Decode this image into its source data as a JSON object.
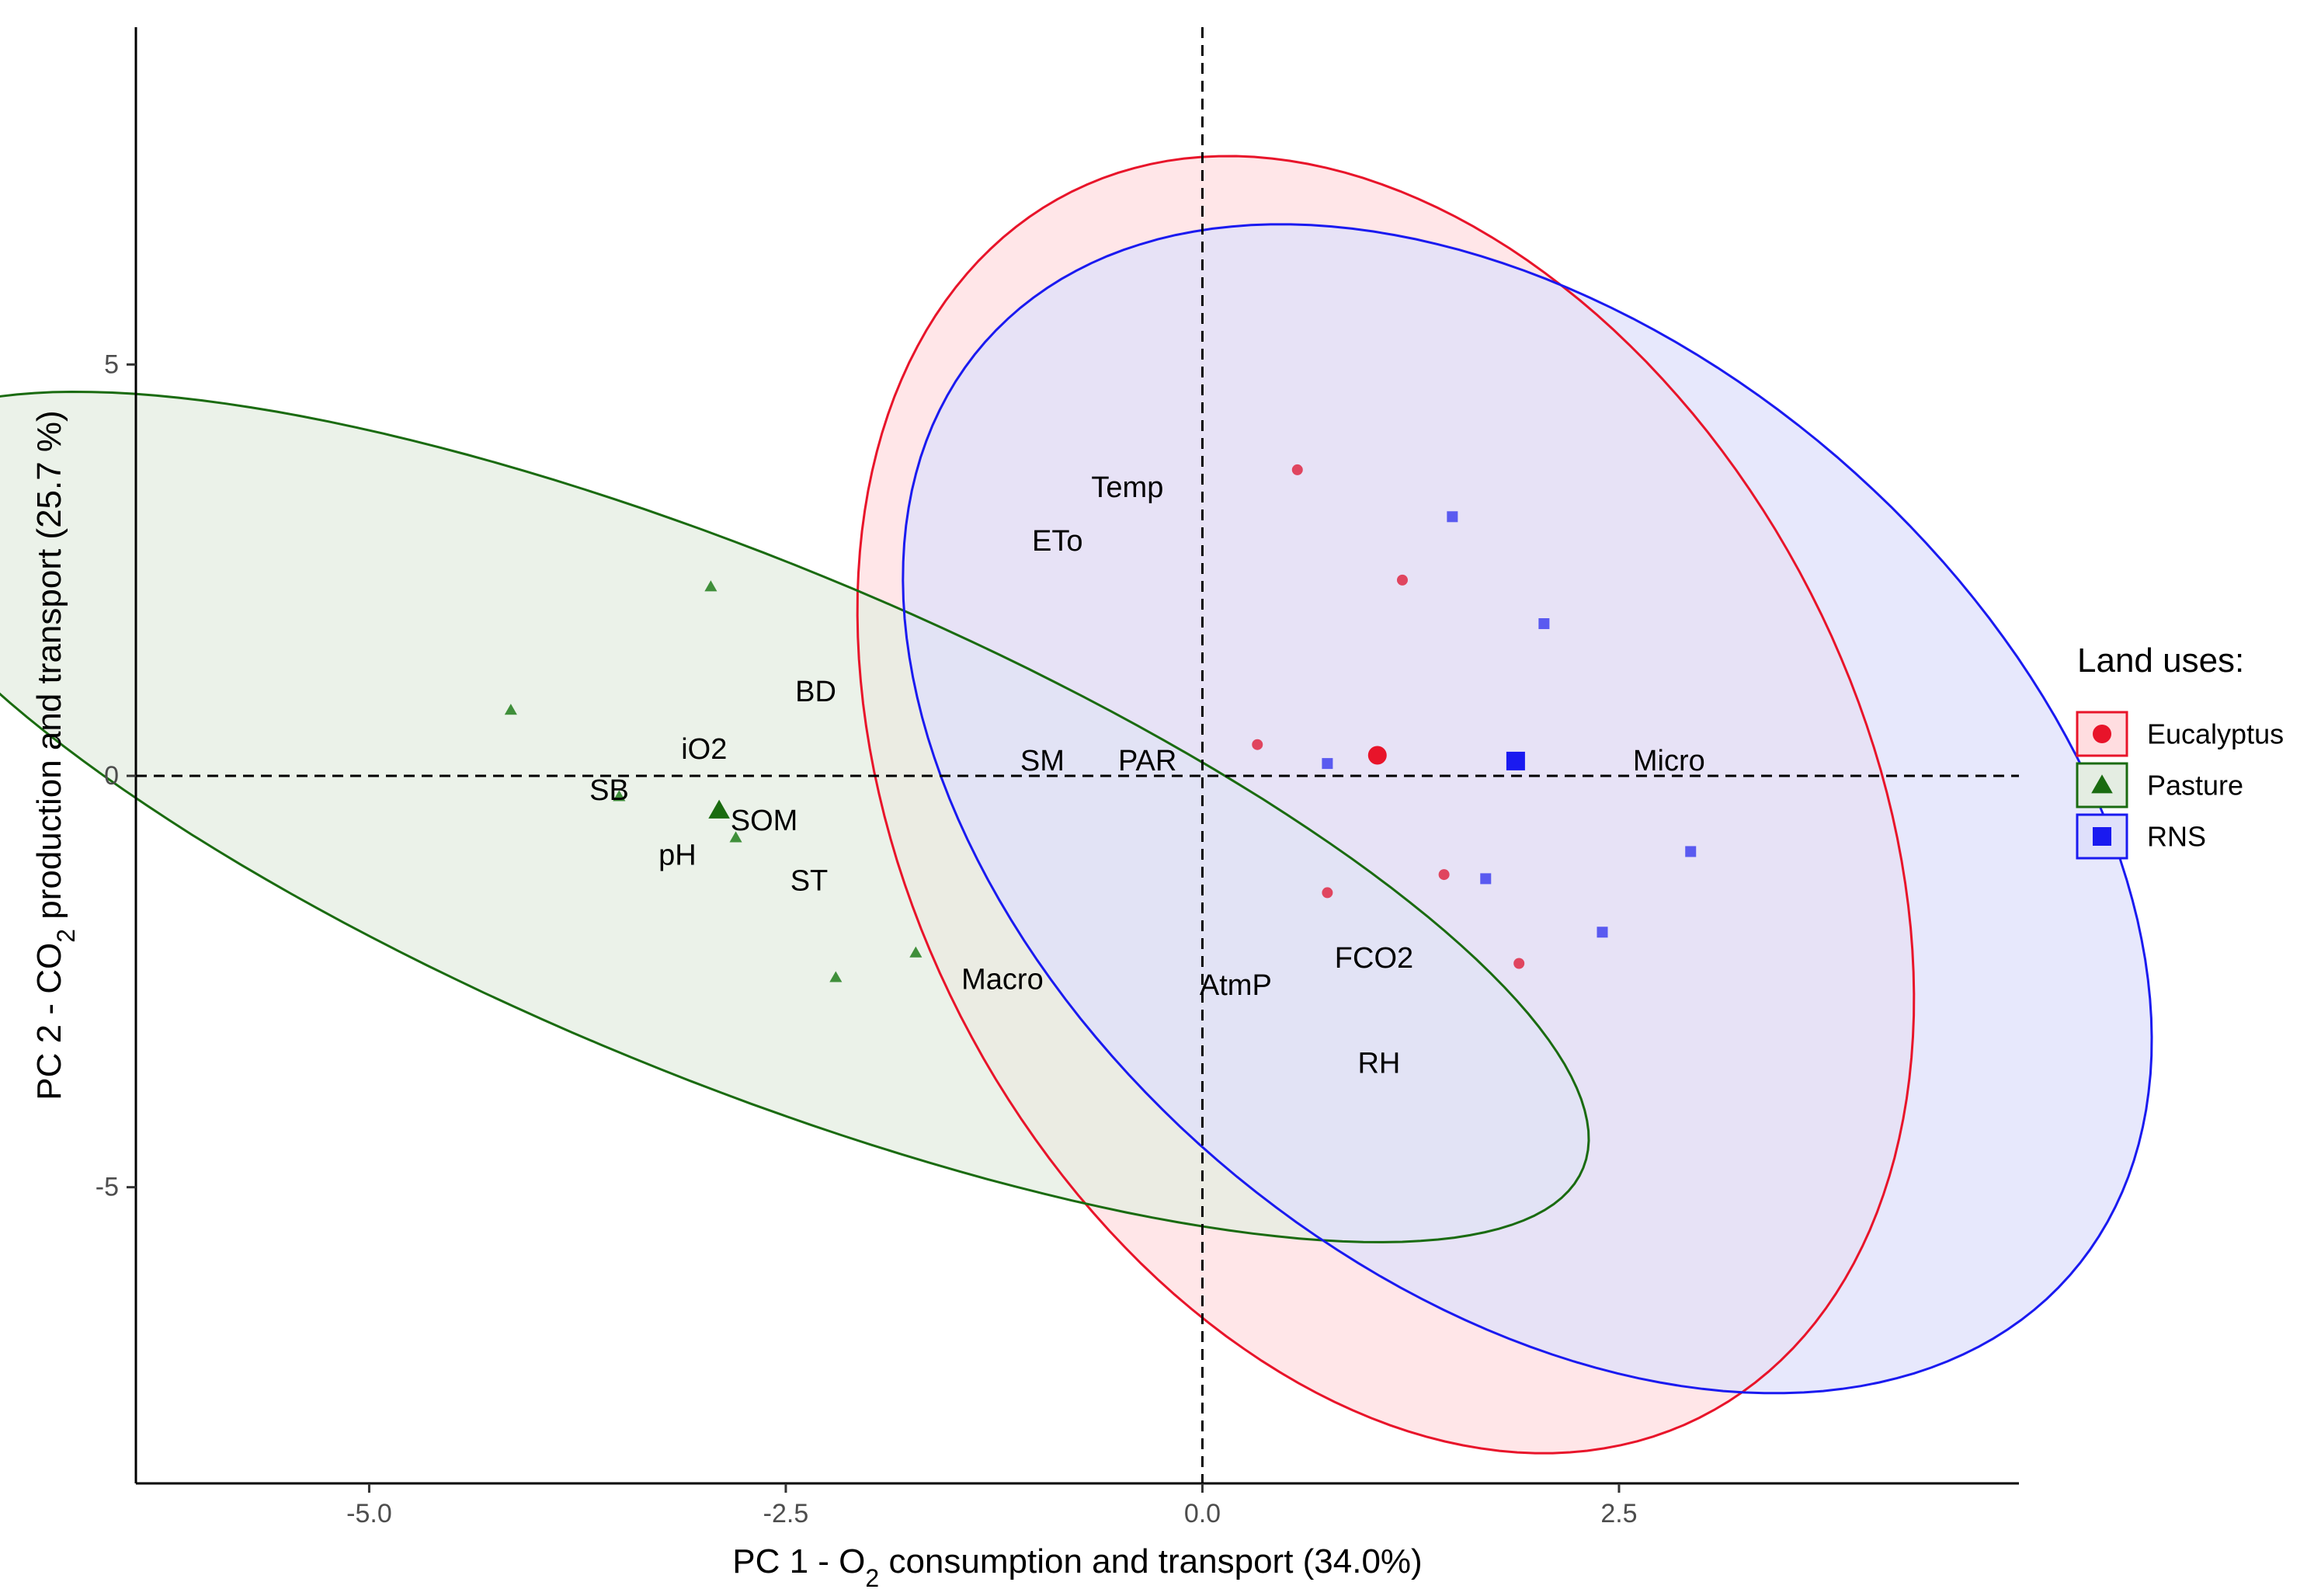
{
  "chart_data": {
    "type": "scatter",
    "title": "",
    "xlabel": {
      "prefix": "PC 1 - O",
      "sub": "2",
      "suffix": " consumption and transport (34.0%)"
    },
    "ylabel": {
      "prefix": "PC 2 - CO",
      "sub": "2",
      "suffix": " production and transport (25.7 %)"
    },
    "xlim": [
      -6.4,
      4.9
    ],
    "ylim": [
      -8.6,
      9.1
    ],
    "xticks": [
      {
        "value": -5.0,
        "label": "-5.0"
      },
      {
        "value": -2.5,
        "label": "-2.5"
      },
      {
        "value": 0.0,
        "label": "0.0"
      },
      {
        "value": 2.5,
        "label": "2.5"
      }
    ],
    "yticks": [
      {
        "value": 5,
        "label": "5"
      },
      {
        "value": 0,
        "label": "0"
      },
      {
        "value": -5,
        "label": "-5"
      }
    ],
    "reference_lines": {
      "x": 0,
      "y": 0,
      "style": "dashed"
    },
    "legend": {
      "title": "Land uses:",
      "position": "right",
      "entries": [
        "Eucalyptus",
        "Pasture",
        "RNS"
      ]
    },
    "groups": [
      {
        "name": "Eucalyptus",
        "color": "#e8142a",
        "fill": "#ffdde0",
        "point_color": "#e0455f",
        "marker": "circle",
        "ellipse": {
          "center": [
            1.1,
            -0.35
          ],
          "semi_major": 7.95,
          "semi_minor": 3.0,
          "angle_deg": 98
        },
        "points": [
          {
            "x": 0.57,
            "y": 3.72
          },
          {
            "x": 1.2,
            "y": 2.38
          },
          {
            "x": 0.33,
            "y": 0.38
          },
          {
            "x": 0.75,
            "y": -1.42
          },
          {
            "x": 1.45,
            "y": -1.2
          },
          {
            "x": 1.9,
            "y": -2.28
          }
        ],
        "centroid": {
          "x": 1.05,
          "y": 0.25
        }
      },
      {
        "name": "Pasture",
        "color": "#1a6b10",
        "fill": "#e4ede2",
        "point_color": "#3f8f3a",
        "marker": "triangle",
        "ellipse": {
          "center": [
            -2.85,
            -0.5
          ],
          "semi_major": 6.85,
          "semi_minor": 2.55,
          "angle_deg": -45
        },
        "points": [
          {
            "x": -2.95,
            "y": 2.3
          },
          {
            "x": -4.15,
            "y": 0.8
          },
          {
            "x": -3.5,
            "y": -0.25
          },
          {
            "x": -2.8,
            "y": -0.75
          },
          {
            "x": -2.2,
            "y": -2.45
          },
          {
            "x": -1.72,
            "y": -2.15
          }
        ],
        "centroid": {
          "x": -2.9,
          "y": -0.42
        }
      },
      {
        "name": "RNS",
        "color": "#1a1af0",
        "fill": "#dfe0fb",
        "point_color": "#5a5af0",
        "marker": "square",
        "ellipse": {
          "center": [
            1.95,
            -0.4
          ],
          "semi_major": 7.3,
          "semi_minor": 3.35,
          "angle_deg": 105
        },
        "points": [
          {
            "x": 1.5,
            "y": 3.15
          },
          {
            "x": 2.05,
            "y": 1.85
          },
          {
            "x": 0.75,
            "y": 0.15
          },
          {
            "x": 1.7,
            "y": -1.25
          },
          {
            "x": 2.4,
            "y": -1.9
          },
          {
            "x": 2.93,
            "y": -0.92
          }
        ],
        "centroid": {
          "x": 1.88,
          "y": 0.18
        }
      }
    ],
    "variable_labels": [
      {
        "text": "Temp",
        "x": -0.45,
        "y": 3.5
      },
      {
        "text": "ETo",
        "x": -0.87,
        "y": 2.85
      },
      {
        "text": "BD",
        "x": -2.32,
        "y": 1.02
      },
      {
        "text": "iO2",
        "x": -2.99,
        "y": 0.32
      },
      {
        "text": "SM",
        "x": -0.96,
        "y": 0.18
      },
      {
        "text": "PAR",
        "x": -0.33,
        "y": 0.18
      },
      {
        "text": "Micro",
        "x": 2.8,
        "y": 0.18
      },
      {
        "text": "SB",
        "x": -3.56,
        "y": -0.18
      },
      {
        "text": "SOM",
        "x": -2.63,
        "y": -0.55
      },
      {
        "text": "pH",
        "x": -3.15,
        "y": -0.97
      },
      {
        "text": "ST",
        "x": -2.36,
        "y": -1.28
      },
      {
        "text": "Macro",
        "x": -1.2,
        "y": -2.48
      },
      {
        "text": "AtmP",
        "x": 0.2,
        "y": -2.55
      },
      {
        "text": "FCO2",
        "x": 1.03,
        "y": -2.22
      },
      {
        "text": "RH",
        "x": 1.06,
        "y": -3.5
      }
    ]
  }
}
